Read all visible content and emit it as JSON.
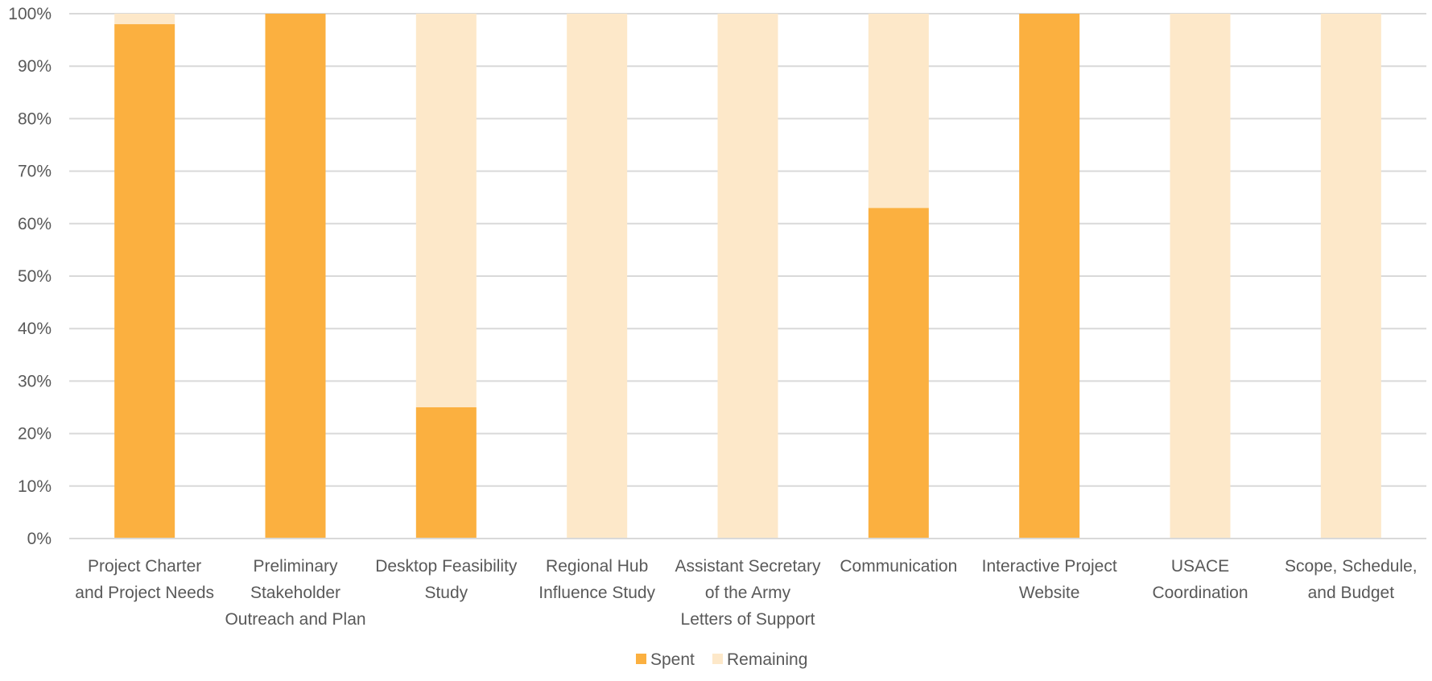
{
  "chart_data": {
    "type": "bar",
    "stacked": true,
    "percent_stacked": true,
    "categories": [
      [
        "Project Charter",
        "and Project Needs"
      ],
      [
        "Preliminary",
        "Stakeholder",
        "Outreach and Plan"
      ],
      [
        "Desktop Feasibility",
        "Study"
      ],
      [
        "Regional Hub",
        "Influence Study"
      ],
      [
        "Assistant Secretary",
        "of the Army",
        "Letters of Support"
      ],
      [
        "Communication"
      ],
      [
        "Interactive Project",
        "Website"
      ],
      [
        "USACE",
        "Coordination"
      ],
      [
        "Scope, Schedule,",
        "and Budget"
      ]
    ],
    "series": [
      {
        "name": "Spent",
        "color": "#fbb040",
        "values": [
          98,
          100,
          25,
          0,
          0,
          63,
          100,
          0,
          0
        ]
      },
      {
        "name": "Remaining",
        "color": "#fde8c9",
        "values": [
          2,
          0,
          75,
          100,
          100,
          37,
          0,
          100,
          100
        ]
      }
    ],
    "ylim": [
      0,
      100
    ],
    "y_ticks": [
      "0%",
      "10%",
      "20%",
      "30%",
      "40%",
      "50%",
      "60%",
      "70%",
      "80%",
      "90%",
      "100%"
    ],
    "grid": true,
    "grid_color": "#d9d9d9",
    "legend_position": "bottom",
    "title": "",
    "xlabel": "",
    "ylabel": ""
  }
}
